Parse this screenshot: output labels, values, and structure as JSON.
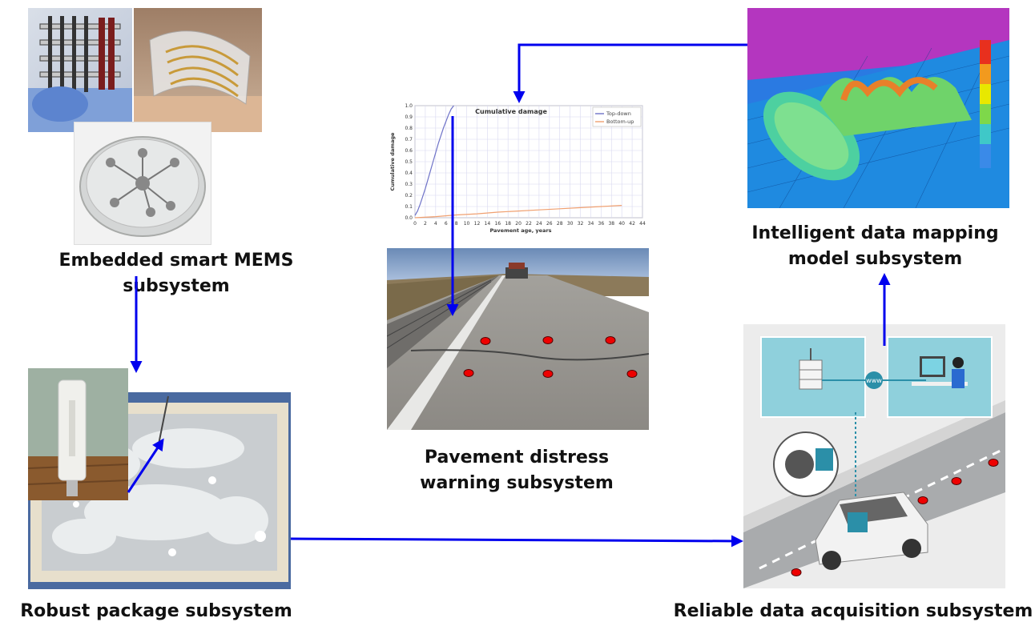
{
  "subsystems": {
    "mems": "Embedded smart MEMS subsystem",
    "package": "Robust package subsystem",
    "warning_line1": "Pavement distress",
    "warning_line2": "warning subsystem",
    "mapping_line1": "Intelligent data mapping",
    "mapping_line2": "model subsystem",
    "acquisition": "Reliable data acquisition subsystem"
  },
  "acquisition_www": "www",
  "chart_data": {
    "type": "line",
    "title": "Cumulative damage",
    "xlabel": "Pavement age, years",
    "ylabel": "Cumulative damage",
    "xlim": [
      0,
      44
    ],
    "ylim": [
      0,
      1.0
    ],
    "xticks": [
      "0",
      "2",
      "4",
      "6",
      "8",
      "10",
      "12",
      "14",
      "16",
      "18",
      "20",
      "22",
      "24",
      "26",
      "28",
      "30",
      "32",
      "34",
      "36",
      "38",
      "40",
      "42",
      "44"
    ],
    "yticks": [
      "0.0",
      "0.1",
      "0.2",
      "0.3",
      "0.4",
      "0.5",
      "0.6",
      "0.7",
      "0.8",
      "0.9",
      "1.0"
    ],
    "legend_position": "top-right",
    "grid": true,
    "series": [
      {
        "name": "Top-down",
        "color": "#6f73c8",
        "x": [
          0,
          0.5,
          1,
          1.5,
          2,
          2.5,
          3,
          3.5,
          4,
          4.5,
          5,
          5.5,
          6,
          6.5,
          7,
          7.5
        ],
        "y": [
          0.02,
          0.06,
          0.12,
          0.19,
          0.26,
          0.34,
          0.42,
          0.5,
          0.58,
          0.66,
          0.73,
          0.8,
          0.86,
          0.92,
          0.97,
          1.0
        ]
      },
      {
        "name": "Bottom-up",
        "color": "#f0a070",
        "x": [
          0,
          4,
          8,
          12,
          16,
          20,
          24,
          28,
          32,
          36,
          40
        ],
        "y": [
          0.0,
          0.01,
          0.025,
          0.035,
          0.05,
          0.06,
          0.07,
          0.08,
          0.09,
          0.1,
          0.11
        ]
      }
    ]
  },
  "colors": {
    "arrow": "#0000ee",
    "marker": "#ee0000"
  }
}
